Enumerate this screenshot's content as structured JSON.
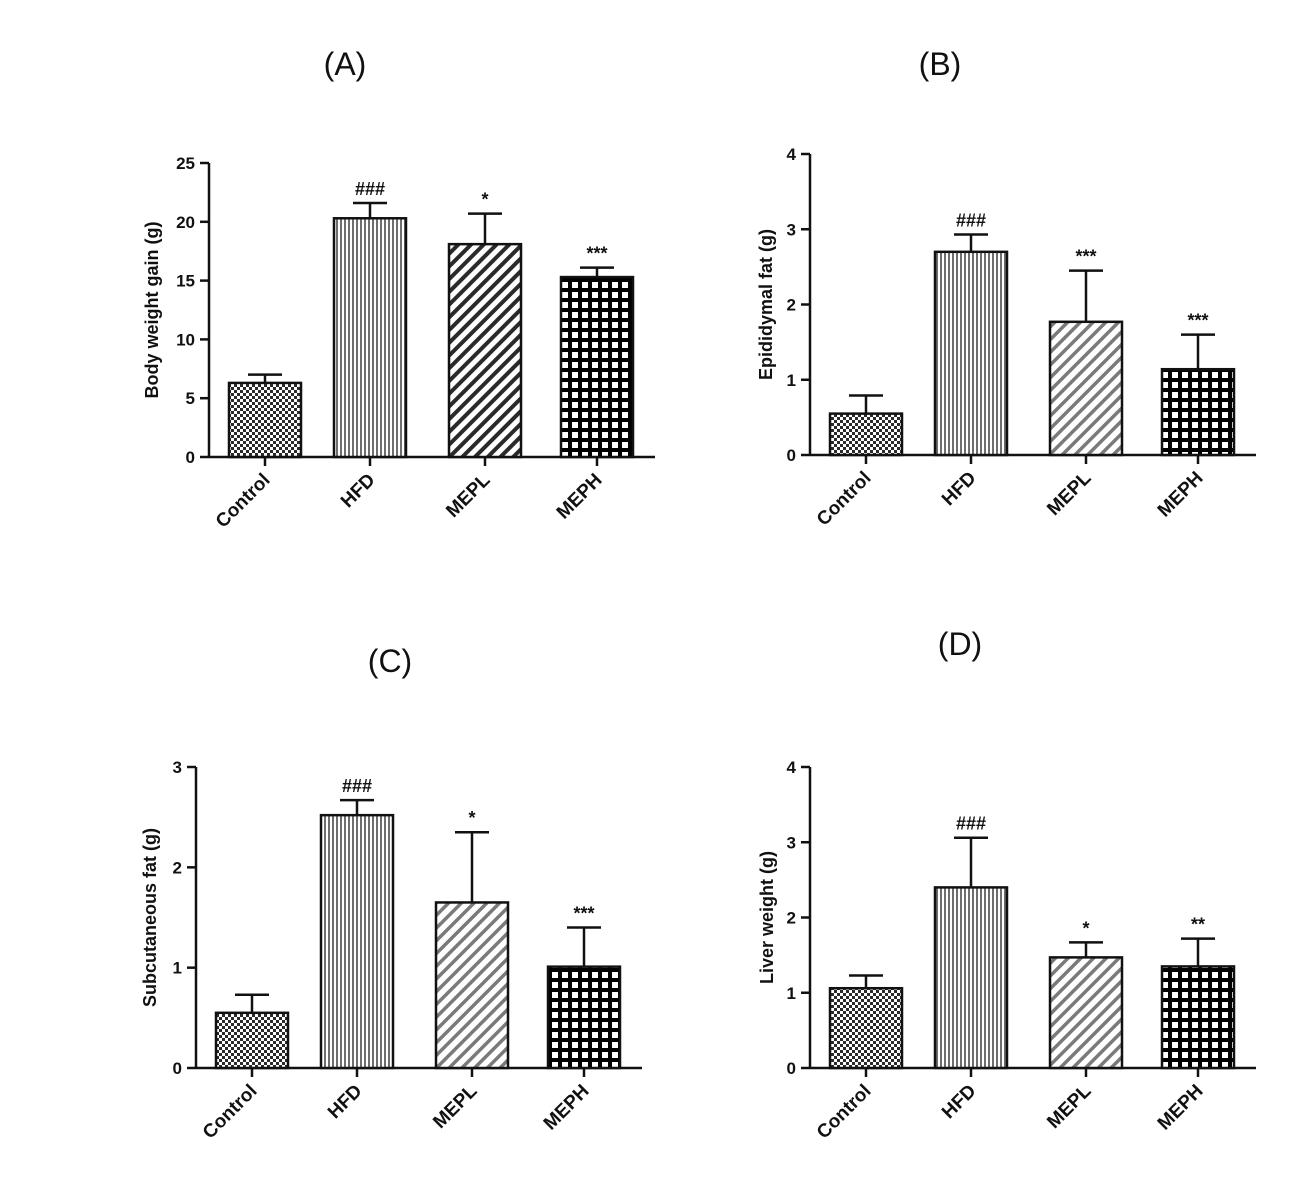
{
  "chart_data": [
    {
      "type": "bar",
      "panel": "(A)",
      "ylabel": "Body weight gain (g)",
      "categories": [
        "Control",
        "HFD",
        "MEPL",
        "MEPH"
      ],
      "values": [
        6.3,
        20.3,
        18.1,
        15.3
      ],
      "errors": [
        0.7,
        1.3,
        2.6,
        0.8
      ],
      "annotations": [
        "",
        "###",
        "*",
        "***"
      ],
      "ylim": [
        0,
        25
      ],
      "yticks": [
        0,
        5,
        10,
        15,
        20,
        25
      ]
    },
    {
      "type": "bar",
      "panel": "(B)",
      "ylabel": "Epididymal fat (g)",
      "categories": [
        "Control",
        "HFD",
        "MEPL",
        "MEPH"
      ],
      "values": [
        0.55,
        2.7,
        1.77,
        1.14
      ],
      "errors": [
        0.24,
        0.23,
        0.68,
        0.46
      ],
      "annotations": [
        "",
        "###",
        "***",
        "***"
      ],
      "ylim": [
        0,
        4
      ],
      "yticks": [
        0,
        1,
        2,
        3,
        4
      ]
    },
    {
      "type": "bar",
      "panel": "(C)",
      "ylabel": "Subcutaneous fat (g)",
      "categories": [
        "Control",
        "HFD",
        "MEPL",
        "MEPH"
      ],
      "values": [
        0.55,
        2.52,
        1.65,
        1.01
      ],
      "errors": [
        0.18,
        0.15,
        0.7,
        0.39
      ],
      "annotations": [
        "",
        "###",
        "*",
        "***"
      ],
      "ylim": [
        0,
        3
      ],
      "yticks": [
        0,
        1,
        2,
        3
      ]
    },
    {
      "type": "bar",
      "panel": "(D)",
      "ylabel": "Liver weight (g)",
      "categories": [
        "Control",
        "HFD",
        "MEPL",
        "MEPH"
      ],
      "values": [
        1.06,
        2.4,
        1.47,
        1.35
      ],
      "errors": [
        0.17,
        0.66,
        0.2,
        0.37
      ],
      "annotations": [
        "",
        "###",
        "*",
        "**"
      ],
      "ylim": [
        0,
        4
      ],
      "yticks": [
        0,
        1,
        2,
        3,
        4
      ]
    }
  ]
}
